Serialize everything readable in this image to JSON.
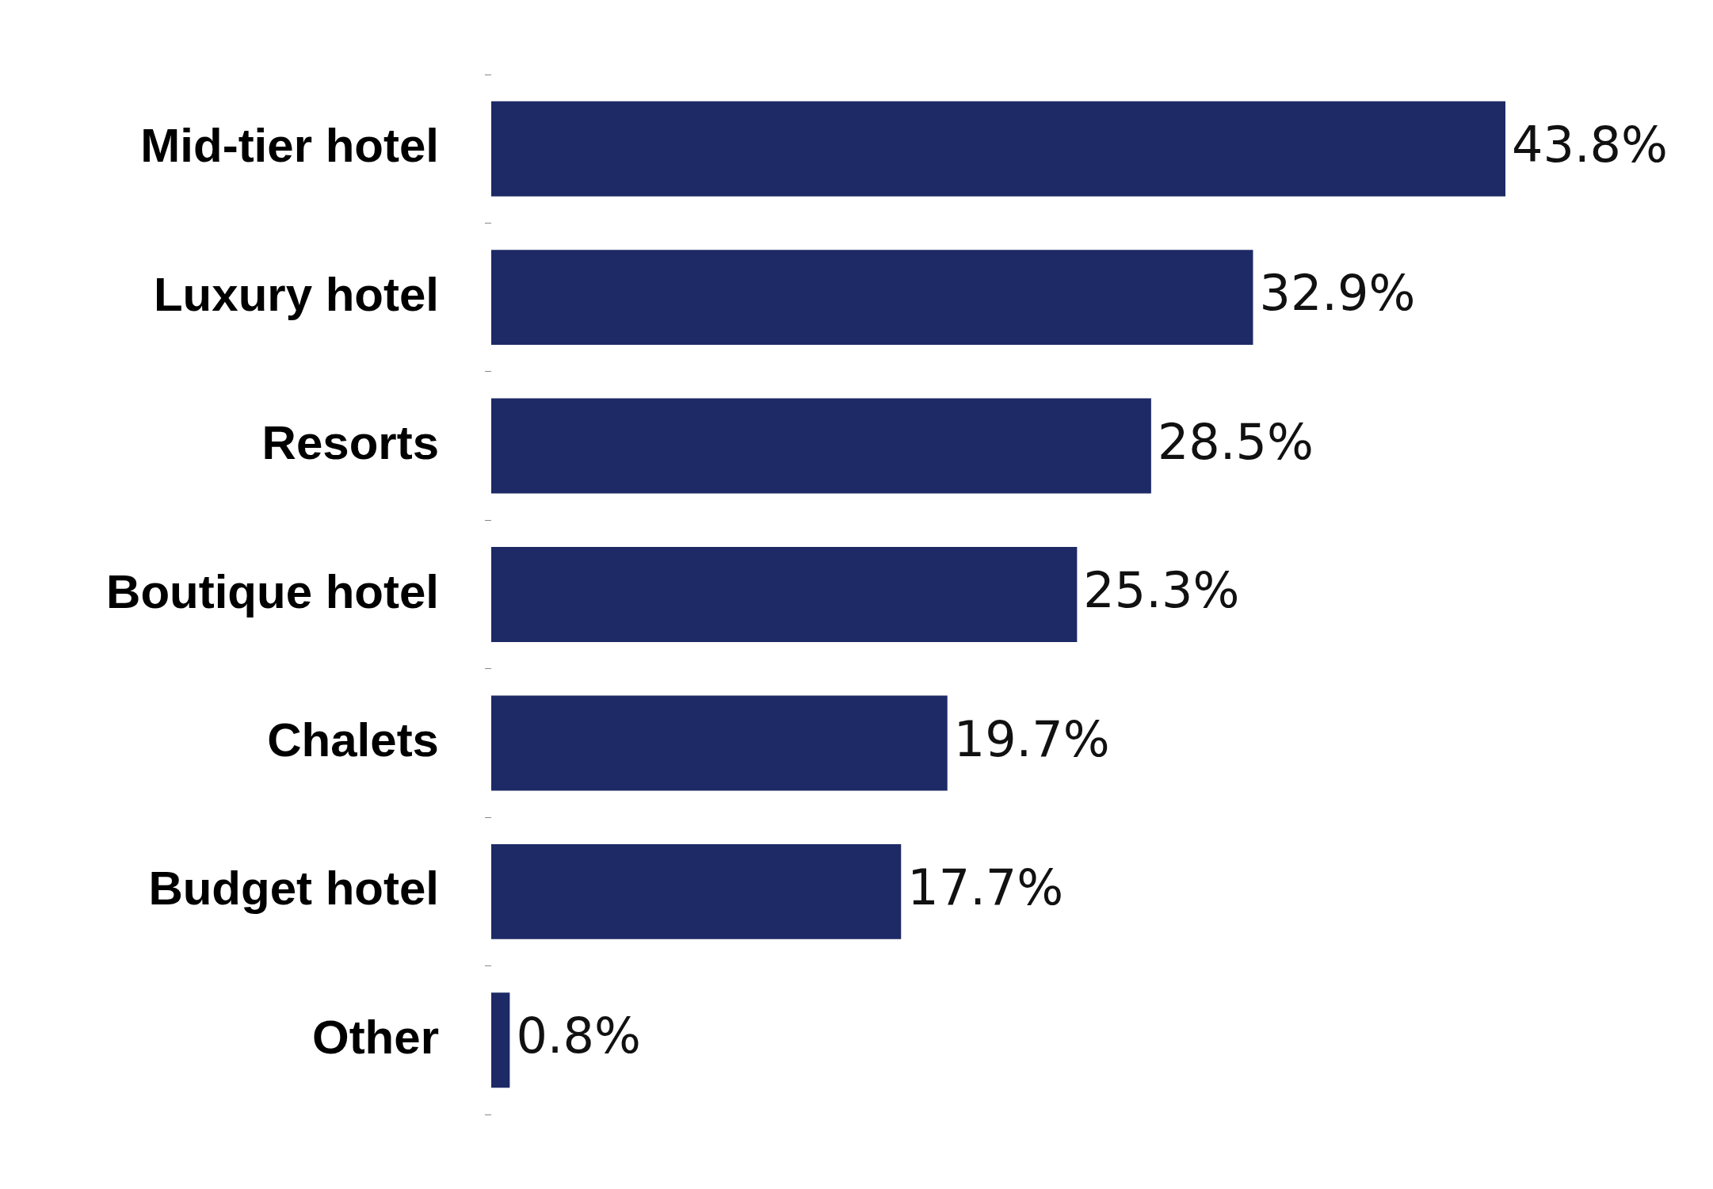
{
  "chart_data": {
    "type": "bar",
    "orientation": "horizontal",
    "tick_labels": "y",
    "categories": [
      "Mid-tier hotel",
      "Luxury hotel",
      "Resorts",
      "Boutique hotel",
      "Chalets",
      "Budget hotel",
      "Other"
    ],
    "values": [
      43.8,
      32.9,
      28.5,
      25.3,
      19.7,
      17.7,
      0.8
    ],
    "value_labels": [
      "43.8%",
      "32.9%",
      "28.5%",
      "25.3%",
      "19.7%",
      "17.7%",
      "0.8%"
    ],
    "color": "#1e2a66"
  }
}
